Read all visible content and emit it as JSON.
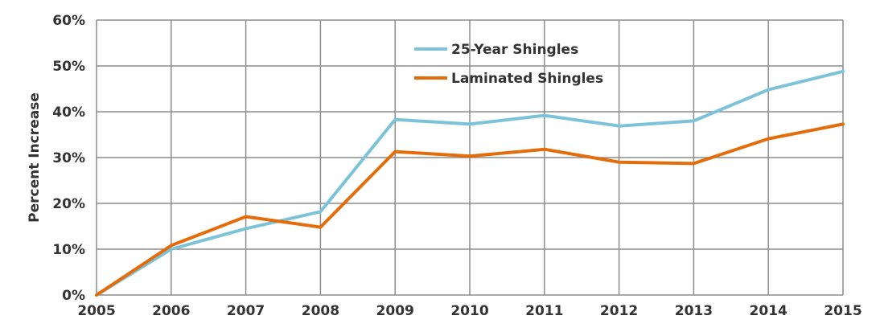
{
  "chart_data": {
    "type": "line",
    "title": "",
    "xlabel": "",
    "ylabel": "Percent Increase",
    "x": [
      2005,
      2006,
      2007,
      2008,
      2009,
      2010,
      2011,
      2012,
      2013,
      2014,
      2015
    ],
    "x_tick_labels": [
      "2005",
      "2006",
      "2007",
      "2008",
      "2009",
      "2010",
      "2011",
      "2012",
      "2013",
      "2014",
      "2015"
    ],
    "ylim": [
      0,
      60
    ],
    "y_ticks": [
      0,
      10,
      20,
      30,
      40,
      50,
      60
    ],
    "y_tick_labels": [
      "0%",
      "10%",
      "20%",
      "30%",
      "40%",
      "50%",
      "60%"
    ],
    "grid": true,
    "legend_position": "top-center",
    "series": [
      {
        "name": "25-Year Shingles",
        "color": "#7cc3d9",
        "values": [
          0,
          10,
          14.5,
          18.2,
          38.3,
          37.3,
          39.2,
          36.9,
          38,
          44.8,
          48.8
        ]
      },
      {
        "name": "Laminated Shingles",
        "color": "#e46c0a",
        "values": [
          0,
          10.8,
          17.1,
          14.8,
          31.3,
          30.3,
          31.8,
          29,
          28.7,
          34.1,
          37.3
        ]
      }
    ]
  }
}
